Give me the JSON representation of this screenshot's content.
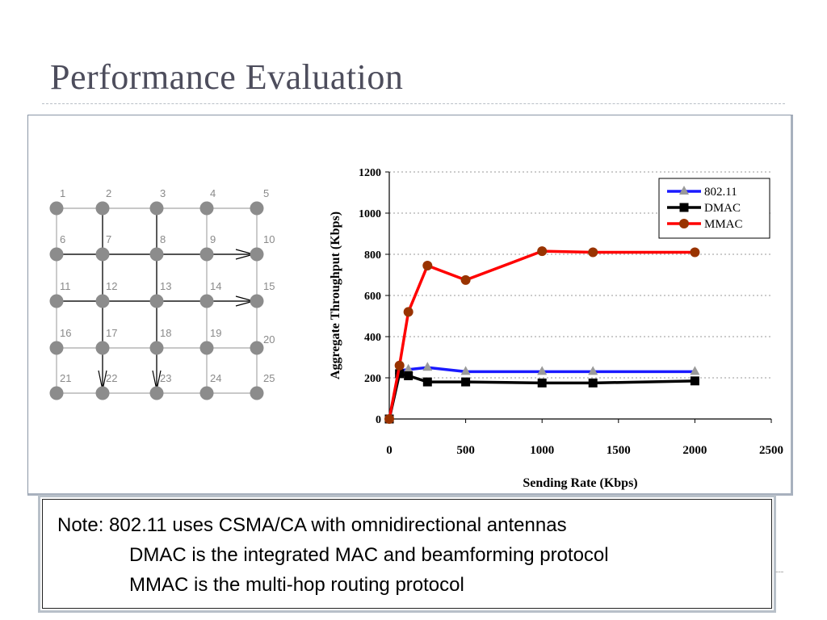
{
  "slide": {
    "title": "Performance Evaluation"
  },
  "topology": {
    "node_labels": [
      "1",
      "2",
      "3",
      "4",
      "5",
      "6",
      "7",
      "8",
      "9",
      "10",
      "11",
      "12",
      "13",
      "14",
      "15",
      "16",
      "17",
      "18",
      "19",
      "20",
      "21",
      "22",
      "23",
      "24",
      "25"
    ],
    "node_color": "#8c8c8c",
    "line_color": "#b5b5b5",
    "flow_color": "#000000"
  },
  "chart_data": {
    "type": "line",
    "xlabel": "Sending Rate (Kbps)",
    "ylabel": "Aggregate Throughput (Kbps)",
    "xlim": [
      0,
      2500
    ],
    "ylim": [
      0,
      1200
    ],
    "x_ticks": [
      "0",
      "500",
      "1000",
      "1500",
      "2000",
      "2500"
    ],
    "y_ticks": [
      "0",
      "200",
      "400",
      "600",
      "800",
      "1000",
      "1200"
    ],
    "grid": "horizontal dotted",
    "legend_position": "top-right",
    "series": [
      {
        "name": "802.11",
        "color": "#1a1aff",
        "marker": "triangle",
        "marker_color": "#9a9a9a",
        "x": [
          0,
          67,
          125,
          250,
          500,
          1000,
          1333,
          2000
        ],
        "y": [
          0,
          235,
          240,
          250,
          230,
          230,
          230,
          230
        ]
      },
      {
        "name": "DMAC",
        "color": "#000000",
        "marker": "square",
        "marker_color": "#000000",
        "x": [
          0,
          67,
          125,
          250,
          500,
          1000,
          1333,
          2000
        ],
        "y": [
          0,
          220,
          210,
          180,
          180,
          175,
          175,
          185
        ]
      },
      {
        "name": "MMAC",
        "color": "#ff0000",
        "marker": "circle",
        "marker_color": "#993300",
        "x": [
          0,
          67,
          125,
          250,
          500,
          1000,
          1333,
          2000
        ],
        "y": [
          0,
          260,
          520,
          745,
          675,
          815,
          810,
          810
        ]
      }
    ]
  },
  "note": {
    "line1": "Note: 802.11 uses CSMA/CA with omnidirectional antennas",
    "line2": "DMAC is the integrated MAC and beamforming protocol",
    "line3": "MMAC is the multi-hop routing protocol"
  }
}
